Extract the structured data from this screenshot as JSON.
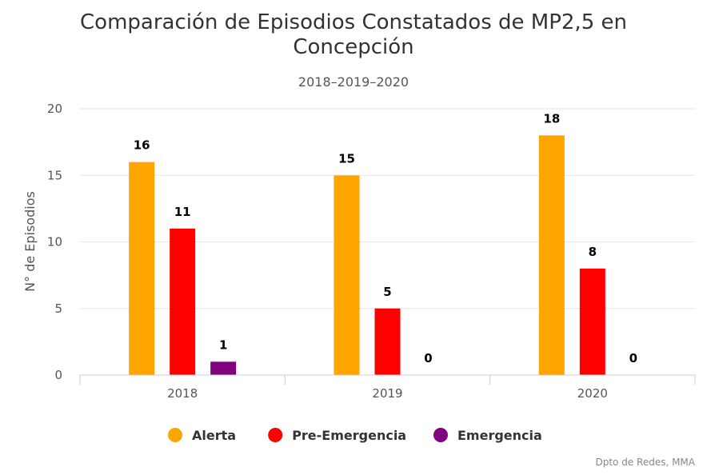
{
  "chart_data": {
    "type": "bar",
    "title_lines": [
      "Comparación de Episodios Constatados de MP2,5 en",
      "Concepción"
    ],
    "subtitle": "2018–2019–2020",
    "xlabel": "",
    "ylabel": "N° de Episodios",
    "ylim": [
      0,
      20
    ],
    "yticks": [
      0,
      5,
      10,
      15,
      20
    ],
    "categories": [
      "2018",
      "2019",
      "2020"
    ],
    "series": [
      {
        "name": "Alerta",
        "color": "#FFA500",
        "values": [
          16,
          15,
          18
        ]
      },
      {
        "name": "Pre-Emergencia",
        "color": "#FF0000",
        "values": [
          11,
          5,
          8
        ]
      },
      {
        "name": "Emergencia",
        "color": "#800080",
        "values": [
          1,
          0,
          0
        ]
      }
    ],
    "grid": true,
    "legend_position": "bottom-center",
    "credits": "Dpto de Redes, MMA"
  }
}
